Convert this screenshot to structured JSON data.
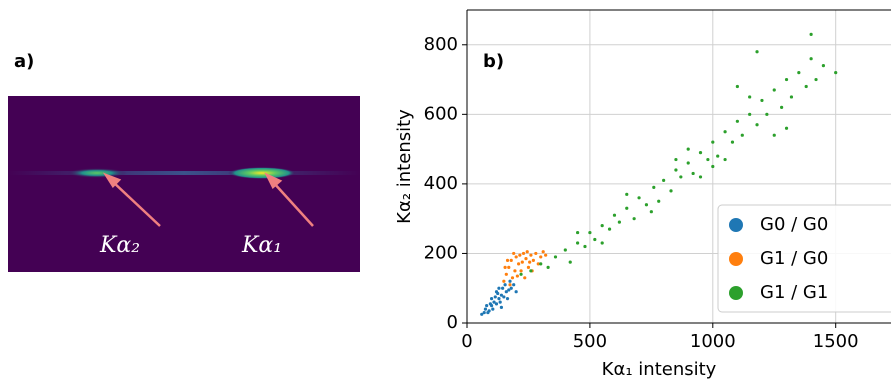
{
  "chart_data": [
    {
      "type": "image",
      "title": "a)",
      "annotations": [
        "Kα₂",
        "Kα₁"
      ]
    },
    {
      "type": "scatter",
      "title": "b)",
      "x_label": "Kα₁ intensity",
      "y_label": "Kα₂ intensity",
      "xlim": [
        0,
        1725
      ],
      "ylim": [
        0,
        900
      ],
      "xticks": [
        0,
        500,
        1000,
        1500
      ],
      "yticks": [
        0,
        200,
        400,
        600,
        800
      ],
      "grid": true,
      "legend": "lower right",
      "series": [
        {
          "name": "G0 / G0",
          "color": "#1f77b4",
          "x": [
            60,
            75,
            90,
            100,
            110,
            120,
            130,
            140,
            150,
            160,
            170,
            180,
            95,
            105,
            115,
            125,
            135,
            145,
            155,
            165,
            175,
            85,
            70,
            140,
            190,
            200,
            130,
            120,
            100,
            80
          ],
          "values": [
            25,
            40,
            35,
            50,
            60,
            55,
            70,
            80,
            75,
            90,
            95,
            100,
            55,
            40,
            75,
            85,
            60,
            100,
            110,
            70,
            120,
            30,
            30,
            45,
            110,
            90,
            100,
            90,
            70,
            50
          ]
        },
        {
          "name": "G1 / G0",
          "color": "#ff7f0e",
          "x": [
            150,
            160,
            170,
            180,
            190,
            200,
            210,
            220,
            230,
            240,
            250,
            260,
            270,
            280,
            300,
            320,
            165,
            175,
            185,
            195,
            205,
            215,
            225,
            235,
            245,
            255,
            265,
            290,
            310,
            155
          ],
          "values": [
            120,
            140,
            160,
            180,
            200,
            190,
            170,
            150,
            200,
            185,
            160,
            195,
            180,
            200,
            190,
            195,
            180,
            110,
            130,
            150,
            135,
            195,
            175,
            130,
            205,
            175,
            150,
            170,
            205,
            160
          ]
        },
        {
          "name": "G1 / G1",
          "color": "#2ca02c",
          "x": [
            220,
            260,
            300,
            330,
            360,
            400,
            420,
            450,
            480,
            500,
            520,
            550,
            580,
            600,
            620,
            650,
            680,
            700,
            730,
            760,
            780,
            800,
            830,
            850,
            870,
            900,
            920,
            950,
            980,
            1000,
            1020,
            1050,
            1080,
            1100,
            1120,
            1150,
            1180,
            1200,
            1220,
            1250,
            1280,
            1300,
            1320,
            1350,
            1380,
            1400,
            1420,
            1450,
            1300,
            1250,
            1150,
            1050,
            950,
            850,
            750,
            650,
            550,
            450,
            1400,
            1500,
            1180,
            1100,
            1000,
            900
          ],
          "values": [
            140,
            150,
            170,
            160,
            190,
            210,
            175,
            230,
            220,
            260,
            240,
            280,
            270,
            310,
            290,
            330,
            300,
            360,
            340,
            390,
            350,
            410,
            380,
            440,
            420,
            460,
            430,
            490,
            470,
            520,
            480,
            550,
            520,
            580,
            540,
            600,
            570,
            640,
            600,
            670,
            620,
            700,
            650,
            720,
            680,
            760,
            700,
            740,
            560,
            540,
            650,
            470,
            420,
            470,
            320,
            370,
            230,
            260,
            830,
            720,
            780,
            680,
            450,
            500
          ]
        }
      ]
    }
  ]
}
